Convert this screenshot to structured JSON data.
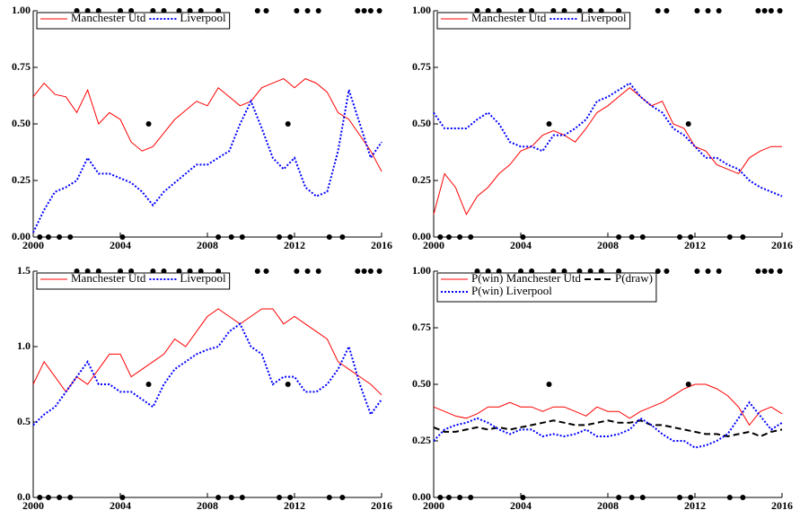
{
  "chart_data": [
    {
      "type": "line",
      "xlim": [
        2000,
        2016
      ],
      "xticks": [
        2000,
        2004,
        2008,
        2012,
        2016
      ],
      "ylim": [
        0,
        1
      ],
      "yticks": [
        {
          "value": 0,
          "label": "0.00"
        },
        {
          "value": 0.25,
          "label": "0.25"
        },
        {
          "value": 0.5,
          "label": "0.50"
        },
        {
          "value": 0.75,
          "label": "0.75"
        },
        {
          "value": 1,
          "label": "1.00"
        }
      ],
      "x": [
        2000,
        2000.5,
        2001,
        2001.5,
        2002,
        2002.5,
        2003,
        2003.5,
        2004,
        2004.5,
        2005,
        2005.5,
        2006,
        2006.5,
        2007,
        2007.5,
        2008,
        2008.5,
        2009,
        2009.5,
        2010,
        2010.5,
        2011,
        2011.5,
        2012,
        2012.5,
        2013,
        2013.5,
        2014,
        2014.5,
        2015,
        2015.5,
        2016
      ],
      "series": [
        {
          "name": "Manchester Utd",
          "color": "#ff0000",
          "dash": "solid",
          "values": [
            0.62,
            0.68,
            0.63,
            0.62,
            0.55,
            0.65,
            0.5,
            0.55,
            0.52,
            0.42,
            0.38,
            0.4,
            0.46,
            0.52,
            0.56,
            0.6,
            0.58,
            0.66,
            0.62,
            0.58,
            0.6,
            0.66,
            0.68,
            0.7,
            0.66,
            0.7,
            0.68,
            0.64,
            0.55,
            0.52,
            0.45,
            0.38,
            0.29
          ]
        },
        {
          "name": "Liverpool",
          "color": "#0000ff",
          "dash": "dotted",
          "values": [
            0.02,
            0.12,
            0.2,
            0.22,
            0.25,
            0.35,
            0.28,
            0.28,
            0.26,
            0.24,
            0.2,
            0.14,
            0.2,
            0.24,
            0.28,
            0.32,
            0.32,
            0.35,
            0.38,
            0.5,
            0.6,
            0.48,
            0.35,
            0.3,
            0.35,
            0.22,
            0.18,
            0.2,
            0.38,
            0.65,
            0.5,
            0.35,
            0.42
          ]
        }
      ],
      "points": {
        "x": [
          2002,
          2002.5,
          2003,
          2004,
          2004.5,
          2005.5,
          2006,
          2006.7,
          2007.2,
          2007.7,
          2008.5,
          2010.3,
          2010.7,
          2012.1,
          2012.6,
          2013.1,
          2014.9,
          2015.2,
          2015.5,
          2015.9,
          2000.3,
          2000.7,
          2001.2,
          2001.7,
          2004.1,
          2008.5,
          2009.1,
          2009.6,
          2011.3,
          2011.8,
          2013.6,
          2014.2,
          2005.3,
          2011.7
        ],
        "y": [
          1,
          1,
          1,
          1,
          1,
          1,
          1,
          1,
          1,
          1,
          1,
          1,
          1,
          1,
          1,
          1,
          1,
          1,
          1,
          1,
          0,
          0,
          0,
          0,
          0,
          0,
          0,
          0,
          0,
          0,
          0,
          0,
          0.5,
          0.5
        ]
      },
      "legend_columns": 2
    },
    {
      "type": "line",
      "xlim": [
        2000,
        2016
      ],
      "xticks": [
        2000,
        2004,
        2008,
        2012,
        2016
      ],
      "ylim": [
        0,
        1
      ],
      "yticks": [
        {
          "value": 0,
          "label": "0.00"
        },
        {
          "value": 0.25,
          "label": "0.25"
        },
        {
          "value": 0.5,
          "label": "0.50"
        },
        {
          "value": 0.75,
          "label": "0.75"
        },
        {
          "value": 1,
          "label": "1.00"
        }
      ],
      "x": [
        2000,
        2000.5,
        2001,
        2001.5,
        2002,
        2002.5,
        2003,
        2003.5,
        2004,
        2004.5,
        2005,
        2005.5,
        2006,
        2006.5,
        2007,
        2007.5,
        2008,
        2008.5,
        2009,
        2009.5,
        2010,
        2010.5,
        2011,
        2011.5,
        2012,
        2012.5,
        2013,
        2013.5,
        2014,
        2014.5,
        2015,
        2015.5,
        2016
      ],
      "series": [
        {
          "name": "Manchester Utd",
          "color": "#ff0000",
          "dash": "solid",
          "values": [
            0.1,
            0.28,
            0.22,
            0.1,
            0.18,
            0.22,
            0.28,
            0.32,
            0.38,
            0.4,
            0.45,
            0.47,
            0.45,
            0.42,
            0.48,
            0.55,
            0.58,
            0.62,
            0.66,
            0.62,
            0.58,
            0.6,
            0.5,
            0.48,
            0.4,
            0.38,
            0.32,
            0.3,
            0.28,
            0.35,
            0.38,
            0.4,
            0.4
          ]
        },
        {
          "name": "Liverpool",
          "color": "#0000ff",
          "dash": "dotted",
          "values": [
            0.55,
            0.48,
            0.48,
            0.48,
            0.52,
            0.55,
            0.5,
            0.42,
            0.4,
            0.4,
            0.38,
            0.45,
            0.45,
            0.48,
            0.52,
            0.6,
            0.62,
            0.65,
            0.68,
            0.62,
            0.58,
            0.55,
            0.48,
            0.45,
            0.4,
            0.35,
            0.35,
            0.32,
            0.3,
            0.25,
            0.22,
            0.2,
            0.18
          ]
        }
      ],
      "points": {
        "x": [
          2002,
          2002.5,
          2003,
          2004,
          2004.5,
          2005.5,
          2006,
          2006.7,
          2007.2,
          2007.7,
          2008.5,
          2010.3,
          2010.7,
          2012.1,
          2012.6,
          2013.1,
          2014.9,
          2015.2,
          2015.5,
          2015.9,
          2000.3,
          2000.7,
          2001.2,
          2001.7,
          2004.1,
          2008.5,
          2009.1,
          2009.6,
          2011.3,
          2011.8,
          2013.6,
          2014.2,
          2005.3,
          2011.7
        ],
        "y": [
          1,
          1,
          1,
          1,
          1,
          1,
          1,
          1,
          1,
          1,
          1,
          1,
          1,
          1,
          1,
          1,
          1,
          1,
          1,
          1,
          0,
          0,
          0,
          0,
          0,
          0,
          0,
          0,
          0,
          0,
          0,
          0,
          0.5,
          0.5
        ]
      },
      "legend_columns": 2
    },
    {
      "type": "line",
      "xlim": [
        2000,
        2016
      ],
      "xticks": [
        2000,
        2004,
        2008,
        2012,
        2016
      ],
      "ylim": [
        0,
        1.5
      ],
      "yticks": [
        {
          "value": 0,
          "label": "0.0"
        },
        {
          "value": 0.5,
          "label": "0.5"
        },
        {
          "value": 1,
          "label": "1.0"
        },
        1.5
      ],
      "x": [
        2000,
        2000.5,
        2001,
        2001.5,
        2002,
        2002.5,
        2003,
        2003.5,
        2004,
        2004.5,
        2005,
        2005.5,
        2006,
        2006.5,
        2007,
        2007.5,
        2008,
        2008.5,
        2009,
        2009.5,
        2010,
        2010.5,
        2011,
        2011.5,
        2012,
        2012.5,
        2013,
        2013.5,
        2014,
        2014.5,
        2015,
        2015.5,
        2016
      ],
      "series": [
        {
          "name": "Manchester Utd",
          "color": "#ff0000",
          "dash": "solid",
          "values": [
            0.75,
            0.9,
            0.8,
            0.7,
            0.8,
            0.75,
            0.85,
            0.95,
            0.95,
            0.8,
            0.85,
            0.9,
            0.95,
            1.05,
            1,
            1.1,
            1.2,
            1.25,
            1.2,
            1.15,
            1.2,
            1.25,
            1.25,
            1.15,
            1.2,
            1.15,
            1.1,
            1.05,
            0.9,
            0.85,
            0.8,
            0.75,
            0.68
          ]
        },
        {
          "name": "Liverpool",
          "color": "#0000ff",
          "dash": "dotted",
          "values": [
            0.48,
            0.55,
            0.6,
            0.7,
            0.8,
            0.9,
            0.75,
            0.75,
            0.7,
            0.7,
            0.65,
            0.6,
            0.75,
            0.85,
            0.9,
            0.95,
            0.98,
            1,
            1.1,
            1.15,
            1,
            0.95,
            0.75,
            0.8,
            0.8,
            0.7,
            0.7,
            0.75,
            0.85,
            1,
            0.75,
            0.55,
            0.65
          ]
        }
      ],
      "points": {
        "x": [
          2002,
          2002.5,
          2003,
          2004,
          2004.5,
          2005.5,
          2006,
          2006.7,
          2007.2,
          2007.7,
          2008.5,
          2010.3,
          2010.7,
          2012.1,
          2012.6,
          2013.1,
          2014.9,
          2015.2,
          2015.5,
          2015.9,
          2000.3,
          2000.7,
          2001.2,
          2001.7,
          2004.1,
          2008.5,
          2009.1,
          2009.6,
          2011.3,
          2011.8,
          2013.6,
          2014.2,
          2005.3,
          2011.7
        ],
        "y": [
          1.5,
          1.5,
          1.5,
          1.5,
          1.5,
          1.5,
          1.5,
          1.5,
          1.5,
          1.5,
          1.5,
          1.5,
          1.5,
          1.5,
          1.5,
          1.5,
          1.5,
          1.5,
          1.5,
          1.5,
          0,
          0,
          0,
          0,
          0,
          0,
          0,
          0,
          0,
          0,
          0,
          0,
          0.75,
          0.75
        ]
      },
      "legend_columns": 2
    },
    {
      "type": "line",
      "xlim": [
        2000,
        2016
      ],
      "xticks": [
        2000,
        2004,
        2008,
        2012,
        2016
      ],
      "ylim": [
        0,
        1
      ],
      "yticks": [
        {
          "value": 0,
          "label": "0.00"
        },
        {
          "value": 0.25,
          "label": "0.25"
        },
        {
          "value": 0.5,
          "label": "0.50"
        },
        {
          "value": 0.75,
          "label": "0.75"
        },
        {
          "value": 1,
          "label": "1.00"
        }
      ],
      "x": [
        2000,
        2000.5,
        2001,
        2001.5,
        2002,
        2002.5,
        2003,
        2003.5,
        2004,
        2004.5,
        2005,
        2005.5,
        2006,
        2006.5,
        2007,
        2007.5,
        2008,
        2008.5,
        2009,
        2009.5,
        2010,
        2010.5,
        2011,
        2011.5,
        2012,
        2012.5,
        2013,
        2013.5,
        2014,
        2014.5,
        2015,
        2015.5,
        2016
      ],
      "series": [
        {
          "name": "P(win) Manchester Utd",
          "color": "#ff0000",
          "dash": "solid",
          "values": [
            0.4,
            0.38,
            0.36,
            0.35,
            0.37,
            0.4,
            0.4,
            0.42,
            0.4,
            0.4,
            0.38,
            0.4,
            0.4,
            0.38,
            0.36,
            0.4,
            0.38,
            0.38,
            0.35,
            0.38,
            0.4,
            0.42,
            0.45,
            0.48,
            0.5,
            0.5,
            0.48,
            0.45,
            0.4,
            0.32,
            0.38,
            0.4,
            0.37
          ]
        },
        {
          "name": "P(draw)",
          "color": "#000000",
          "dash": "dashed",
          "values": [
            0.31,
            0.29,
            0.29,
            0.3,
            0.31,
            0.3,
            0.31,
            0.3,
            0.31,
            0.32,
            0.33,
            0.34,
            0.33,
            0.32,
            0.32,
            0.33,
            0.34,
            0.33,
            0.33,
            0.34,
            0.32,
            0.32,
            0.31,
            0.3,
            0.29,
            0.28,
            0.28,
            0.27,
            0.28,
            0.29,
            0.27,
            0.29,
            0.3
          ]
        },
        {
          "name": "P(win) Liverpool",
          "color": "#0000ff",
          "dash": "dotted",
          "values": [
            0.25,
            0.3,
            0.32,
            0.33,
            0.35,
            0.33,
            0.3,
            0.28,
            0.3,
            0.3,
            0.27,
            0.28,
            0.27,
            0.28,
            0.3,
            0.27,
            0.27,
            0.28,
            0.3,
            0.35,
            0.32,
            0.28,
            0.25,
            0.25,
            0.22,
            0.23,
            0.25,
            0.28,
            0.35,
            0.42,
            0.36,
            0.3,
            0.33
          ]
        }
      ],
      "points": {
        "x": [
          2002,
          2002.5,
          2003,
          2004,
          2004.5,
          2005.5,
          2006,
          2006.7,
          2007.2,
          2007.7,
          2008.5,
          2010.3,
          2010.7,
          2012.1,
          2012.6,
          2013.1,
          2014.9,
          2015.2,
          2015.5,
          2015.9,
          2000.3,
          2000.7,
          2001.2,
          2001.7,
          2004.1,
          2008.5,
          2009.1,
          2009.6,
          2011.3,
          2011.8,
          2013.6,
          2014.2,
          2005.3,
          2011.7
        ],
        "y": [
          1,
          1,
          1,
          1,
          1,
          1,
          1,
          1,
          1,
          1,
          1,
          1,
          1,
          1,
          1,
          1,
          1,
          1,
          1,
          1,
          0,
          0,
          0,
          0,
          0,
          0,
          0,
          0,
          0,
          0,
          0,
          0,
          0.5,
          0.5
        ]
      },
      "legend_columns": 2
    }
  ]
}
